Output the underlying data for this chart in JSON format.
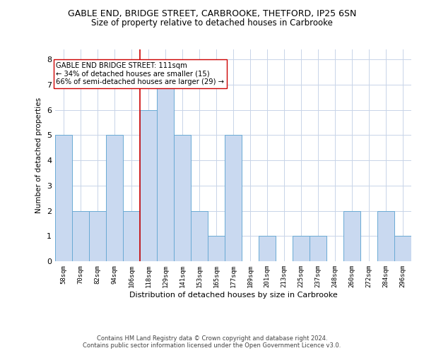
{
  "title": "GABLE END, BRIDGE STREET, CARBROOKE, THETFORD, IP25 6SN",
  "subtitle": "Size of property relative to detached houses in Carbrooke",
  "xlabel": "Distribution of detached houses by size in Carbrooke",
  "ylabel": "Number of detached properties",
  "categories": [
    "58sqm",
    "70sqm",
    "82sqm",
    "94sqm",
    "106sqm",
    "118sqm",
    "129sqm",
    "141sqm",
    "153sqm",
    "165sqm",
    "177sqm",
    "189sqm",
    "201sqm",
    "213sqm",
    "225sqm",
    "237sqm",
    "248sqm",
    "260sqm",
    "272sqm",
    "284sqm",
    "296sqm"
  ],
  "values": [
    5,
    2,
    2,
    5,
    2,
    6,
    7,
    5,
    2,
    1,
    5,
    0,
    1,
    0,
    1,
    1,
    0,
    2,
    0,
    2,
    1
  ],
  "bar_color": "#c9d9f0",
  "bar_edge_color": "#6aaad4",
  "reference_line_x": 4.5,
  "reference_line_color": "#cc0000",
  "annotation_text": "GABLE END BRIDGE STREET: 111sqm\n← 34% of detached houses are smaller (15)\n66% of semi-detached houses are larger (29) →",
  "annotation_box_color": "#ffffff",
  "annotation_box_edge_color": "#cc0000",
  "ylim": [
    0,
    8.4
  ],
  "yticks": [
    0,
    1,
    2,
    3,
    4,
    5,
    6,
    7,
    8
  ],
  "footer_line1": "Contains HM Land Registry data © Crown copyright and database right 2024.",
  "footer_line2": "Contains public sector information licensed under the Open Government Licence v3.0.",
  "background_color": "#ffffff",
  "grid_color": "#c8d4e8"
}
